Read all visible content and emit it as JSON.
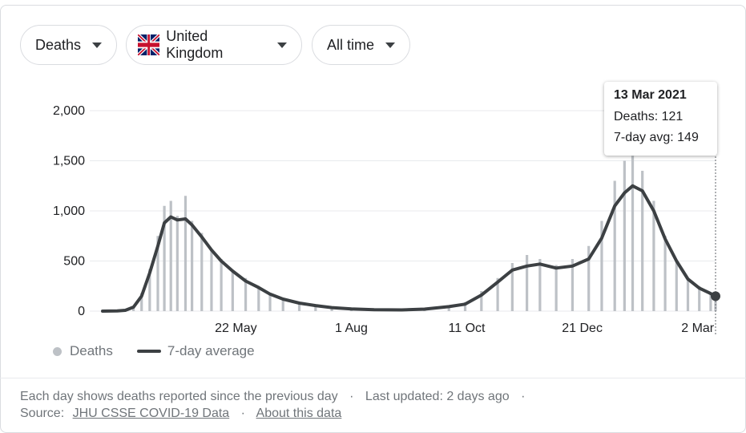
{
  "controls": {
    "metric_label": "Deaths",
    "country_label": "United Kingdom",
    "range_label": "All time"
  },
  "tooltip": {
    "date": "13 Mar 2021",
    "deaths": "Deaths: 121",
    "avg": "7-day avg: 149"
  },
  "legend": {
    "bars_label": "Deaths",
    "line_label": "7-day average"
  },
  "footer": {
    "line1": "Each day shows deaths reported since the previous day",
    "updated": "Last updated: 2 days ago",
    "source_prefix": "Source:",
    "source_link": "JHU CSSE COVID-19 Data",
    "about_link": "About this data"
  },
  "colors": {
    "bars": "#bdc1c6",
    "line": "#3c4043",
    "grid": "#e8eaed",
    "axis_text": "#202124"
  },
  "chart_data": {
    "type": "bar",
    "title": "",
    "xlabel": "",
    "ylabel": "",
    "ylim": [
      0,
      2000
    ],
    "yticks": [
      0,
      500,
      1000,
      1500,
      2000
    ],
    "ytick_labels": [
      "0",
      "500",
      "1,000",
      "1,500",
      "2,000"
    ],
    "xtick_labels": [
      "22 May",
      "1 Aug",
      "11 Oct",
      "21 Dec",
      "2 Mar"
    ],
    "x_range": [
      "2020-03-01",
      "2021-03-13"
    ],
    "series": [
      {
        "name": "Deaths",
        "kind": "bars",
        "points": [
          [
            "2020-03-01",
            0
          ],
          [
            "2020-03-10",
            2
          ],
          [
            "2020-03-15",
            10
          ],
          [
            "2020-03-20",
            50
          ],
          [
            "2020-03-25",
            180
          ],
          [
            "2020-03-30",
            420
          ],
          [
            "2020-04-04",
            750
          ],
          [
            "2020-04-08",
            1050
          ],
          [
            "2020-04-12",
            1100
          ],
          [
            "2020-04-16",
            950
          ],
          [
            "2020-04-21",
            1150
          ],
          [
            "2020-04-25",
            900
          ],
          [
            "2020-05-01",
            780
          ],
          [
            "2020-05-07",
            620
          ],
          [
            "2020-05-13",
            520
          ],
          [
            "2020-05-20",
            400
          ],
          [
            "2020-05-28",
            330
          ],
          [
            "2020-06-05",
            240
          ],
          [
            "2020-06-12",
            180
          ],
          [
            "2020-06-20",
            120
          ],
          [
            "2020-06-30",
            80
          ],
          [
            "2020-07-10",
            60
          ],
          [
            "2020-07-20",
            40
          ],
          [
            "2020-08-01",
            25
          ],
          [
            "2020-08-15",
            18
          ],
          [
            "2020-09-01",
            15
          ],
          [
            "2020-09-15",
            25
          ],
          [
            "2020-09-30",
            55
          ],
          [
            "2020-10-10",
            90
          ],
          [
            "2020-10-20",
            200
          ],
          [
            "2020-10-30",
            330
          ],
          [
            "2020-11-08",
            480
          ],
          [
            "2020-11-17",
            560
          ],
          [
            "2020-11-25",
            520
          ],
          [
            "2020-12-05",
            460
          ],
          [
            "2020-12-15",
            520
          ],
          [
            "2020-12-25",
            650
          ],
          [
            "2021-01-02",
            900
          ],
          [
            "2021-01-10",
            1300
          ],
          [
            "2021-01-16",
            1500
          ],
          [
            "2021-01-21",
            1550
          ],
          [
            "2021-01-27",
            1400
          ],
          [
            "2021-02-03",
            1100
          ],
          [
            "2021-02-10",
            750
          ],
          [
            "2021-02-17",
            500
          ],
          [
            "2021-02-24",
            330
          ],
          [
            "2021-03-03",
            250
          ],
          [
            "2021-03-10",
            170
          ],
          [
            "2021-03-13",
            121
          ]
        ]
      },
      {
        "name": "7-day average",
        "kind": "line",
        "points": [
          [
            "2020-03-01",
            0
          ],
          [
            "2020-03-10",
            2
          ],
          [
            "2020-03-15",
            8
          ],
          [
            "2020-03-20",
            40
          ],
          [
            "2020-03-25",
            150
          ],
          [
            "2020-03-30",
            380
          ],
          [
            "2020-04-04",
            650
          ],
          [
            "2020-04-08",
            880
          ],
          [
            "2020-04-12",
            940
          ],
          [
            "2020-04-16",
            910
          ],
          [
            "2020-04-21",
            920
          ],
          [
            "2020-04-25",
            860
          ],
          [
            "2020-05-01",
            740
          ],
          [
            "2020-05-07",
            610
          ],
          [
            "2020-05-13",
            500
          ],
          [
            "2020-05-20",
            400
          ],
          [
            "2020-05-28",
            300
          ],
          [
            "2020-06-05",
            235
          ],
          [
            "2020-06-12",
            170
          ],
          [
            "2020-06-20",
            120
          ],
          [
            "2020-06-30",
            80
          ],
          [
            "2020-07-10",
            55
          ],
          [
            "2020-07-20",
            35
          ],
          [
            "2020-08-01",
            22
          ],
          [
            "2020-08-15",
            14
          ],
          [
            "2020-09-01",
            12
          ],
          [
            "2020-09-15",
            20
          ],
          [
            "2020-09-30",
            45
          ],
          [
            "2020-10-10",
            70
          ],
          [
            "2020-10-20",
            160
          ],
          [
            "2020-10-30",
            290
          ],
          [
            "2020-11-08",
            410
          ],
          [
            "2020-11-17",
            450
          ],
          [
            "2020-11-25",
            470
          ],
          [
            "2020-12-05",
            430
          ],
          [
            "2020-12-15",
            450
          ],
          [
            "2020-12-25",
            520
          ],
          [
            "2021-01-02",
            730
          ],
          [
            "2021-01-10",
            1050
          ],
          [
            "2021-01-16",
            1180
          ],
          [
            "2021-01-21",
            1250
          ],
          [
            "2021-01-27",
            1200
          ],
          [
            "2021-02-03",
            1000
          ],
          [
            "2021-02-10",
            720
          ],
          [
            "2021-02-17",
            500
          ],
          [
            "2021-02-24",
            320
          ],
          [
            "2021-03-03",
            230
          ],
          [
            "2021-03-10",
            175
          ],
          [
            "2021-03-13",
            149
          ]
        ]
      }
    ],
    "grid": true,
    "legend_position": "bottom-left"
  }
}
